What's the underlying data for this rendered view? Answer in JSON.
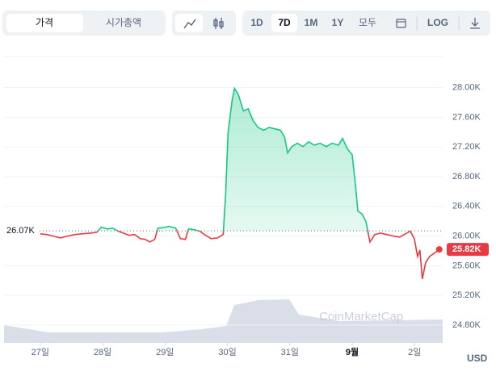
{
  "ui": {
    "tabs": [
      "가격",
      "시가총액"
    ],
    "ranges": [
      "1D",
      "7D",
      "1M",
      "1Y",
      "모두"
    ],
    "log": "LOG",
    "watermark": "CoinMarketCap",
    "currency": "USD"
  },
  "chart_data": {
    "type": "line",
    "up_color": "#16c784",
    "down_color": "#ea3943",
    "x": [
      0,
      0.103,
      0.207,
      0.323,
      0.439,
      0.556,
      0.672,
      0.801,
      0.904,
      0.982,
      1.072,
      1.163,
      1.253,
      1.331,
      1.421,
      1.512,
      1.602,
      1.68,
      1.757,
      1.835,
      1.886,
      1.977,
      2.067,
      2.171,
      2.248,
      2.326,
      2.377,
      2.468,
      2.558,
      2.649,
      2.739,
      2.842,
      2.933,
      2.972,
      3.01,
      3.075,
      3.114,
      3.178,
      3.256,
      3.333,
      3.411,
      3.488,
      3.579,
      3.669,
      3.76,
      3.85,
      3.915,
      3.966,
      4.031,
      4.121,
      4.212,
      4.302,
      4.393,
      4.483,
      4.587,
      4.677,
      4.78,
      4.845,
      4.922,
      5,
      5.052,
      5.09,
      5.155,
      5.22,
      5.284,
      5.362,
      5.452,
      5.556,
      5.659,
      5.762,
      5.853,
      5.93,
      5.995,
      6.047,
      6.085,
      6.124,
      6.176,
      6.24,
      6.318,
      6.395
    ],
    "values": [
      26030,
      26020,
      26000,
      25975,
      26000,
      26020,
      26030,
      26040,
      26050,
      26120,
      26095,
      26105,
      26065,
      26040,
      26010,
      26020,
      25965,
      25955,
      25920,
      25955,
      26105,
      26115,
      26130,
      26105,
      25965,
      25955,
      26095,
      26085,
      26065,
      26010,
      25965,
      25975,
      26020,
      26575,
      27390,
      27825,
      27990,
      27900,
      27685,
      27715,
      27555,
      27465,
      27425,
      27465,
      27445,
      27425,
      27335,
      27120,
      27205,
      27250,
      27205,
      27270,
      27225,
      27250,
      27205,
      27250,
      27225,
      27315,
      27175,
      27095,
      26685,
      26335,
      26300,
      26195,
      25920,
      26020,
      26040,
      26020,
      26000,
      25985,
      26030,
      26065,
      25965,
      25725,
      25810,
      25420,
      25640,
      25725,
      25770,
      25820
    ],
    "last_value_label": "25.82K",
    "reference": {
      "value": 26070,
      "label": "26.07K"
    },
    "xlim": [
      -0.58,
      6.45
    ],
    "xticks": [
      {
        "value": 0,
        "label": "27일"
      },
      {
        "value": 1,
        "label": "28일"
      },
      {
        "value": 2,
        "label": "29일"
      },
      {
        "value": 3,
        "label": "30일"
      },
      {
        "value": 4,
        "label": "31일"
      },
      {
        "value": 5,
        "label": "9월"
      },
      {
        "value": 6,
        "label": "2일"
      }
    ],
    "ylim": [
      24560,
      28420
    ],
    "yticks": [
      {
        "value": 24800,
        "label": "24.80K"
      },
      {
        "value": 25200,
        "label": "25.20K"
      },
      {
        "value": 25600,
        "label": "25.60K"
      },
      {
        "value": 26000,
        "label": "26.00K"
      },
      {
        "value": 26400,
        "label": "26.40K"
      },
      {
        "value": 26800,
        "label": "26.80K"
      },
      {
        "value": 27200,
        "label": "27.20K"
      },
      {
        "value": 27600,
        "label": "27.60K"
      },
      {
        "value": 28000,
        "label": "28.00K"
      }
    ],
    "grid": true
  }
}
